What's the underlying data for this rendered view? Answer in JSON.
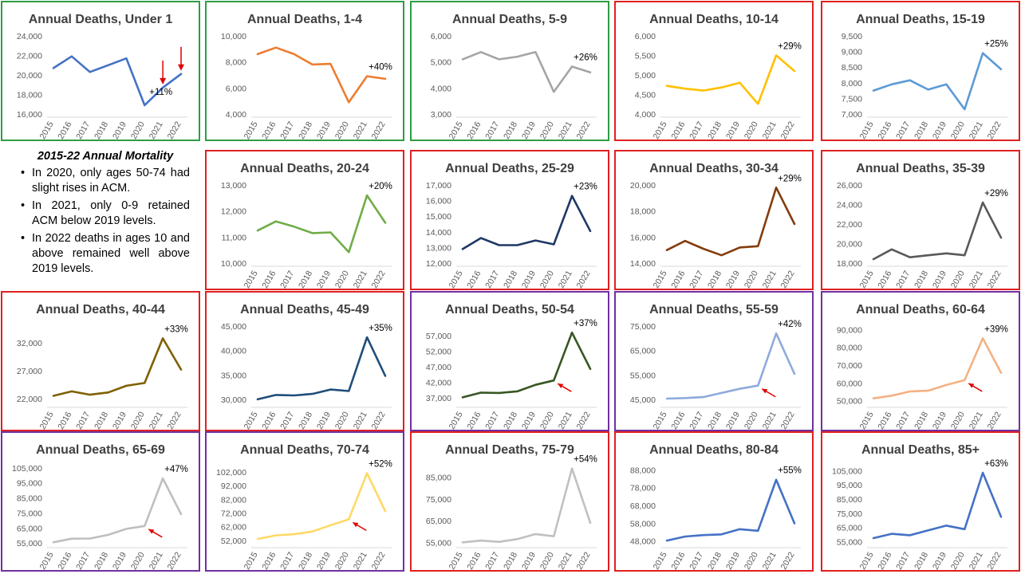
{
  "notes": {
    "title": "2015-22 Annual Mortality",
    "bullets": [
      "In 2020, only ages 50-74 had slight rises in ACM.",
      "In 2021, only 0-9 retained ACM below 2019 levels.",
      "In 2022 deaths in ages 10 and above remained well above 2019 levels."
    ]
  },
  "colors": {
    "border_green": "#2e9e44",
    "border_red": "#e02020",
    "border_purple": "#7030a0",
    "arrow": "#e00000"
  },
  "chart_data": [
    {
      "type": "line",
      "title": "Annual Deaths, Under 1",
      "x": [
        "2015",
        "2016",
        "2017",
        "2018",
        "2019",
        "2020",
        "2021",
        "2022"
      ],
      "values": [
        20700,
        21900,
        20300,
        21000,
        21700,
        16900,
        18700,
        20100
      ],
      "ylim": [
        16000,
        24000
      ],
      "yticks": [
        "16,000",
        "18,000",
        "20,000",
        "22,000",
        "24,000"
      ],
      "annotation": "+11%",
      "color": "#4472c4",
      "border": "green",
      "arrows": [
        6,
        7
      ]
    },
    {
      "type": "line",
      "title": "Annual Deaths, 1-4",
      "x": [
        "2015",
        "2016",
        "2017",
        "2018",
        "2019",
        "2020",
        "2021",
        "2022"
      ],
      "values": [
        8600,
        9100,
        8600,
        7800,
        7850,
        4900,
        6900,
        6700
      ],
      "ylim": [
        4000,
        10000
      ],
      "yticks": [
        "4,000",
        "6,000",
        "8,000",
        "10,000"
      ],
      "annotation": "+40%",
      "color": "#ed7d31",
      "border": "green",
      "arrows": []
    },
    {
      "type": "line",
      "title": "Annual Deaths, 5-9",
      "x": [
        "2015",
        "2016",
        "2017",
        "2018",
        "2019",
        "2020",
        "2021",
        "2022"
      ],
      "values": [
        5100,
        5380,
        5100,
        5200,
        5380,
        3850,
        4820,
        4600
      ],
      "ylim": [
        3000,
        6000
      ],
      "yticks": [
        "3,000",
        "4,000",
        "5,000",
        "6,000"
      ],
      "annotation": "+26%",
      "color": "#a5a5a5",
      "border": "green",
      "arrows": []
    },
    {
      "type": "line",
      "title": "Annual Deaths, 10-14",
      "x": [
        "2015",
        "2016",
        "2017",
        "2018",
        "2019",
        "2020",
        "2021",
        "2022"
      ],
      "values": [
        4720,
        4650,
        4600,
        4680,
        4800,
        4260,
        5500,
        5100
      ],
      "ylim": [
        4000,
        6000
      ],
      "yticks": [
        "4,000",
        "4,500",
        "5,000",
        "5,500",
        "6,000"
      ],
      "annotation": "+29%",
      "color": "#ffc000",
      "border": "red",
      "arrows": []
    },
    {
      "type": "line",
      "title": "Annual Deaths, 15-19",
      "x": [
        "2015",
        "2016",
        "2017",
        "2018",
        "2019",
        "2020",
        "2021",
        "2022"
      ],
      "values": [
        7750,
        7950,
        8080,
        7780,
        7950,
        7150,
        8950,
        8430
      ],
      "ylim": [
        7000,
        9500
      ],
      "yticks": [
        "7,000",
        "7,500",
        "8,000",
        "8,500",
        "9,000",
        "9,500"
      ],
      "annotation": "+25%",
      "color": "#5b9bd5",
      "border": "red",
      "arrows": []
    },
    {
      "type": "line",
      "title": "Annual Deaths, 20-24",
      "x": [
        "2015",
        "2016",
        "2017",
        "2018",
        "2019",
        "2020",
        "2021",
        "2022"
      ],
      "values": [
        11250,
        11600,
        11400,
        11150,
        11180,
        10420,
        12600,
        11550
      ],
      "ylim": [
        10000,
        13000
      ],
      "yticks": [
        "10,000",
        "11,000",
        "12,000",
        "13,000"
      ],
      "annotation": "+20%",
      "color": "#70ad47",
      "border": "red",
      "arrows": []
    },
    {
      "type": "line",
      "title": "Annual Deaths, 25-29",
      "x": [
        "2015",
        "2016",
        "2017",
        "2018",
        "2019",
        "2020",
        "2021",
        "2022"
      ],
      "values": [
        12900,
        13600,
        13150,
        13150,
        13450,
        13200,
        16300,
        14050
      ],
      "ylim": [
        12000,
        17000
      ],
      "yticks": [
        "12,000",
        "13,000",
        "14,000",
        "15,000",
        "16,000",
        "17,000"
      ],
      "annotation": "+23%",
      "color": "#1f3864",
      "border": "red",
      "arrows": []
    },
    {
      "type": "line",
      "title": "Annual Deaths, 30-34",
      "x": [
        "2015",
        "2016",
        "2017",
        "2018",
        "2019",
        "2020",
        "2021",
        "2022"
      ],
      "values": [
        15000,
        15700,
        15100,
        14600,
        15200,
        15300,
        19800,
        17000
      ],
      "ylim": [
        14000,
        20000
      ],
      "yticks": [
        "14,000",
        "16,000",
        "18,000",
        "20,000"
      ],
      "annotation": "+29%",
      "color": "#843c0c",
      "border": "red",
      "arrows": []
    },
    {
      "type": "line",
      "title": "Annual Deaths, 35-39",
      "x": [
        "2015",
        "2016",
        "2017",
        "2018",
        "2019",
        "2020",
        "2021",
        "2022"
      ],
      "values": [
        18400,
        19400,
        18600,
        18800,
        19000,
        18800,
        24200,
        20600
      ],
      "ylim": [
        18000,
        26000
      ],
      "yticks": [
        "18,000",
        "20,000",
        "22,000",
        "24,000",
        "26,000"
      ],
      "annotation": "+29%",
      "color": "#595959",
      "border": "red",
      "arrows": []
    },
    {
      "type": "line",
      "title": "Annual Deaths, 40-44",
      "x": [
        "2015",
        "2016",
        "2017",
        "2018",
        "2019",
        "2020",
        "2021",
        "2022"
      ],
      "values": [
        22500,
        23300,
        22700,
        23100,
        24300,
        24800,
        32800,
        27200
      ],
      "ylim": [
        21000,
        35000
      ],
      "yticks": [
        "22,000",
        "27,000",
        "32,000"
      ],
      "annotation": "+33%",
      "color": "#7f6000",
      "border": "red",
      "arrows": []
    },
    {
      "type": "line",
      "title": "Annual Deaths, 45-49",
      "x": [
        "2015",
        "2016",
        "2017",
        "2018",
        "2019",
        "2020",
        "2021",
        "2022"
      ],
      "values": [
        30000,
        30900,
        30800,
        31100,
        32000,
        31700,
        42700,
        34800
      ],
      "ylim": [
        29000,
        45000
      ],
      "yticks": [
        "30,000",
        "35,000",
        "40,000",
        "45,000"
      ],
      "annotation": "+35%",
      "color": "#1f4e79",
      "border": "red",
      "arrows": []
    },
    {
      "type": "line",
      "title": "Annual Deaths, 50-54",
      "x": [
        "2015",
        "2016",
        "2017",
        "2018",
        "2019",
        "2020",
        "2021",
        "2022"
      ],
      "values": [
        37200,
        38700,
        38600,
        39100,
        41200,
        42600,
        57900,
        46300
      ],
      "ylim": [
        35000,
        60000
      ],
      "yticks": [
        "37,000",
        "42,000",
        "47,000",
        "52,000",
        "57,000"
      ],
      "annotation": "+37%",
      "color": "#375623",
      "border": "purple",
      "arrows": [
        5
      ]
    },
    {
      "type": "line",
      "title": "Annual Deaths, 55-59",
      "x": [
        "2015",
        "2016",
        "2017",
        "2018",
        "2019",
        "2020",
        "2021",
        "2022"
      ],
      "values": [
        45300,
        45500,
        45900,
        47600,
        49300,
        50600,
        72000,
        55400
      ],
      "ylim": [
        43000,
        75000
      ],
      "yticks": [
        "45,000",
        "55,000",
        "65,000",
        "75,000"
      ],
      "annotation": "+42%",
      "color": "#8faadc",
      "border": "purple",
      "arrows": [
        5
      ]
    },
    {
      "type": "line",
      "title": "Annual Deaths, 60-64",
      "x": [
        "2015",
        "2016",
        "2017",
        "2018",
        "2019",
        "2020",
        "2021",
        "2022"
      ],
      "values": [
        51300,
        52800,
        55200,
        55600,
        58800,
        61500,
        85100,
        65700
      ],
      "ylim": [
        48000,
        92000
      ],
      "yticks": [
        "50,000",
        "60,000",
        "70,000",
        "80,000",
        "90,000"
      ],
      "annotation": "+39%",
      "color": "#f4b183",
      "border": "purple",
      "arrows": [
        5
      ]
    },
    {
      "type": "line",
      "title": "Annual Deaths, 65-69",
      "x": [
        "2015",
        "2016",
        "2017",
        "2018",
        "2019",
        "2020",
        "2021",
        "2022"
      ],
      "values": [
        55500,
        57900,
        58000,
        60400,
        64400,
        66300,
        98000,
        74200
      ],
      "ylim": [
        54000,
        106000
      ],
      "yticks": [
        "55,000",
        "65,000",
        "75,000",
        "85,000",
        "95,000",
        "105,000"
      ],
      "annotation": "+47%",
      "color": "#bfbfbf",
      "border": "purple",
      "arrows": [
        5
      ]
    },
    {
      "type": "line",
      "title": "Annual Deaths, 70-74",
      "x": [
        "2015",
        "2016",
        "2017",
        "2018",
        "2019",
        "2020",
        "2021",
        "2022"
      ],
      "values": [
        53000,
        55700,
        56500,
        58500,
        63100,
        67400,
        101000,
        73300
      ],
      "ylim": [
        49000,
        106000
      ],
      "yticks": [
        "52,000",
        "62,000",
        "72,000",
        "82,000",
        "92,000",
        "102,000"
      ],
      "annotation": "+52%",
      "color": "#ffd966",
      "border": "purple",
      "arrows": [
        5
      ]
    },
    {
      "type": "line",
      "title": "Annual Deaths, 75-79",
      "x": [
        "2015",
        "2016",
        "2017",
        "2018",
        "2019",
        "2020",
        "2021",
        "2022"
      ],
      "values": [
        55000,
        55800,
        55200,
        56500,
        58800,
        57800,
        89000,
        64000
      ],
      "ylim": [
        54000,
        90000
      ],
      "yticks": [
        "55,000",
        "65,000",
        "75,000",
        "85,000"
      ],
      "annotation": "+54%",
      "color": "#c0c0c0",
      "border": "red",
      "arrows": []
    },
    {
      "type": "line",
      "title": "Annual Deaths, 80-84",
      "x": [
        "2015",
        "2016",
        "2017",
        "2018",
        "2019",
        "2020",
        "2021",
        "2022"
      ],
      "values": [
        48200,
        50500,
        51300,
        51700,
        54600,
        53700,
        82500,
        57900
      ],
      "ylim": [
        46000,
        90000
      ],
      "yticks": [
        "48,000",
        "58,000",
        "68,000",
        "78,000",
        "88,000"
      ],
      "annotation": "+55%",
      "color": "#4472c4",
      "border": "red",
      "arrows": []
    },
    {
      "type": "line",
      "title": "Annual Deaths, 85+",
      "x": [
        "2015",
        "2016",
        "2017",
        "2018",
        "2019",
        "2020",
        "2021",
        "2022"
      ],
      "values": [
        57500,
        60500,
        59500,
        63000,
        66300,
        63800,
        103500,
        72500
      ],
      "ylim": [
        53000,
        108000
      ],
      "yticks": [
        "55,000",
        "65,000",
        "75,000",
        "85,000",
        "95,000",
        "105,000"
      ],
      "annotation": "+63%",
      "color": "#4472c4",
      "border": "red",
      "arrows": []
    }
  ]
}
